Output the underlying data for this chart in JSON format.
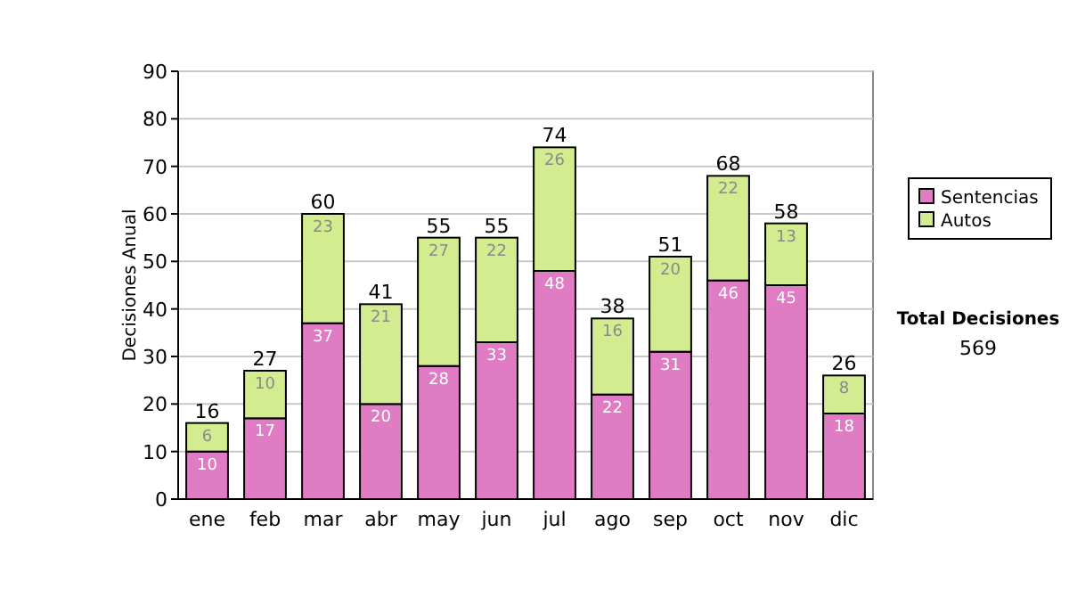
{
  "chart_data": {
    "type": "bar",
    "stacked": true,
    "ylabel": "Decisiones Anual",
    "categories": [
      "ene",
      "feb",
      "mar",
      "abr",
      "may",
      "jun",
      "jul",
      "ago",
      "sep",
      "oct",
      "nov",
      "dic"
    ],
    "series": [
      {
        "name": "Sentencias",
        "color": "#e07cc4",
        "values": [
          10,
          17,
          37,
          20,
          28,
          33,
          48,
          22,
          31,
          46,
          45,
          18
        ]
      },
      {
        "name": "Autos",
        "color": "#d4ec90",
        "values": [
          6,
          10,
          23,
          21,
          27,
          22,
          26,
          16,
          20,
          22,
          13,
          8
        ]
      }
    ],
    "ylim": [
      0,
      90
    ],
    "yticks": [
      0,
      10,
      20,
      30,
      40,
      50,
      60,
      70,
      80,
      90
    ],
    "grid": "y",
    "legend": "right",
    "data_labels": true,
    "totals": [
      "16",
      "27",
      "60",
      "41",
      "55",
      "55",
      "74",
      "38",
      "51",
      "68",
      "58",
      "26"
    ],
    "annotations": [
      "Total Decisiones",
      "569"
    ]
  }
}
